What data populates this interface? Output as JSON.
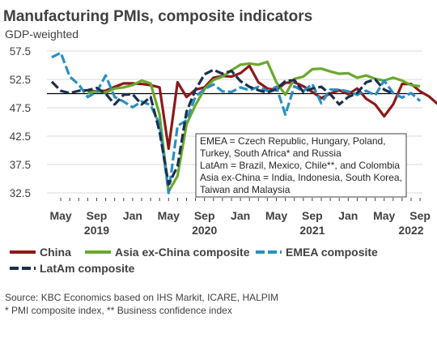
{
  "chart_data": {
    "type": "line",
    "title": "Manufacturing PMIs, composite indicators",
    "subtitle": "GDP-weighted",
    "ylim": [
      31,
      58.5
    ],
    "yticks": [
      57.5,
      52.5,
      47.5,
      42.5,
      37.5,
      32.5
    ],
    "reference_line": 50,
    "grid": "horizontal",
    "x_start": "2019-04",
    "x_tick_labels": [
      {
        "m": 1,
        "label": "May"
      },
      {
        "m": 5,
        "label": "Sep"
      },
      {
        "m": 9,
        "label": "Jan"
      },
      {
        "m": 13,
        "label": "May"
      },
      {
        "m": 17,
        "label": "Sep"
      },
      {
        "m": 21,
        "label": "Jan"
      },
      {
        "m": 25,
        "label": "May"
      },
      {
        "m": 29,
        "label": "Sep"
      },
      {
        "m": 33,
        "label": "Jan"
      },
      {
        "m": 37,
        "label": "May"
      },
      {
        "m": 41,
        "label": "Sep"
      }
    ],
    "year_labels": [
      {
        "m": 5,
        "label": "2019"
      },
      {
        "m": 17,
        "label": "2020"
      },
      {
        "m": 29,
        "label": "2021"
      },
      {
        "m": 40,
        "label": "2022"
      }
    ],
    "annotation": [
      "EMEA = Czech Republic, Hungary, Poland,",
      "Turkey, South Africa* and Russia",
      "LatAm = Brazil, Mexico, Chile**, and Colombia",
      "Asia ex-China = India, Indonesia, South Korea,",
      "Taiwan and Malaysia"
    ],
    "series": [
      {
        "name": "China",
        "color": "#8b1a1a",
        "dash": "solid",
        "start": 4,
        "values": [
          50.5,
          50.4,
          50.5,
          51.2,
          51.8,
          51.8,
          51.7,
          51.5,
          51.1,
          40.3,
          52.0,
          49.4,
          50.7,
          51.1,
          52.8,
          53.1,
          53.0,
          53.6,
          54.9,
          52.0,
          50.9,
          50.6,
          51.9,
          52.0,
          51.3,
          50.3,
          49.2,
          50.0,
          50.6,
          49.9,
          50.9,
          49.1,
          48.1,
          46.0,
          48.1,
          51.7,
          51.7,
          50.4,
          49.5,
          48.1
        ]
      },
      {
        "name": "Asia ex-China composite",
        "color": "#6aa82e",
        "dash": "solid",
        "start": 4,
        "values": [
          50.1,
          50.4,
          50.2,
          50.9,
          51.1,
          51.5,
          52.3,
          51.8,
          46.3,
          32.7,
          35.5,
          44.6,
          48.0,
          50.8,
          52.4,
          53.0,
          54.1,
          55.1,
          55.3,
          55.1,
          55.6,
          52.0,
          49.8,
          52.6,
          53.0,
          54.3,
          54.4,
          53.9,
          53.5,
          53.6,
          52.8,
          53.2,
          52.6,
          52.3,
          52.8,
          52.3,
          51.5,
          51.3
        ]
      },
      {
        "name": "EMEA composite",
        "color": "#2a8fbf",
        "dash": "dashed",
        "start": 0,
        "values": [
          56.4,
          57.2,
          53.0,
          51.6,
          49.4,
          50.3,
          53.2,
          49.4,
          48.6,
          47.6,
          48.6,
          48.0,
          44.6,
          32.5,
          44.3,
          45.3,
          49.5,
          50.8,
          51.6,
          50.4,
          50.3,
          51.1,
          50.6,
          51.2,
          50.5,
          51.2,
          46.3,
          51.3,
          50.4,
          51.7,
          48.3,
          50.7,
          50.7,
          50.4,
          49.8,
          50.5,
          49.7,
          52.3,
          50.1,
          49.3,
          50.1,
          48.7
        ]
      },
      {
        "name": "LatAm composite",
        "color": "#1c2f4f",
        "dash": "dashed",
        "start": 0,
        "values": [
          52.1,
          50.5,
          50.1,
          50.5,
          50.6,
          51.0,
          50.0,
          48.1,
          49.8,
          49.9,
          48.1,
          49.4,
          43.3,
          34.0,
          37.2,
          46.8,
          50.7,
          53.4,
          54.2,
          53.5,
          54.0,
          52.2,
          51.2,
          50.6,
          50.2,
          50.8,
          52.2,
          52.4,
          50.3,
          50.9,
          51.2,
          49.9,
          48.1,
          49.4,
          50.1,
          52.0,
          52.5,
          50.7,
          50.0
        ]
      }
    ],
    "legend": [
      {
        "name": "China",
        "color": "#8b1a1a",
        "dash": "solid"
      },
      {
        "name": "Asia ex-China composite",
        "color": "#6aa82e",
        "dash": "solid"
      },
      {
        "name": "EMEA composite",
        "color": "#2a8fbf",
        "dash": "dashed"
      },
      {
        "name": "LatAm composite",
        "color": "#1c2f4f",
        "dash": "dashed"
      }
    ]
  },
  "source": [
    "Source: KBC Economics based on IHS Markit, ICARE, HALPIM",
    "* PMI composite index, ** Business confidence index"
  ]
}
